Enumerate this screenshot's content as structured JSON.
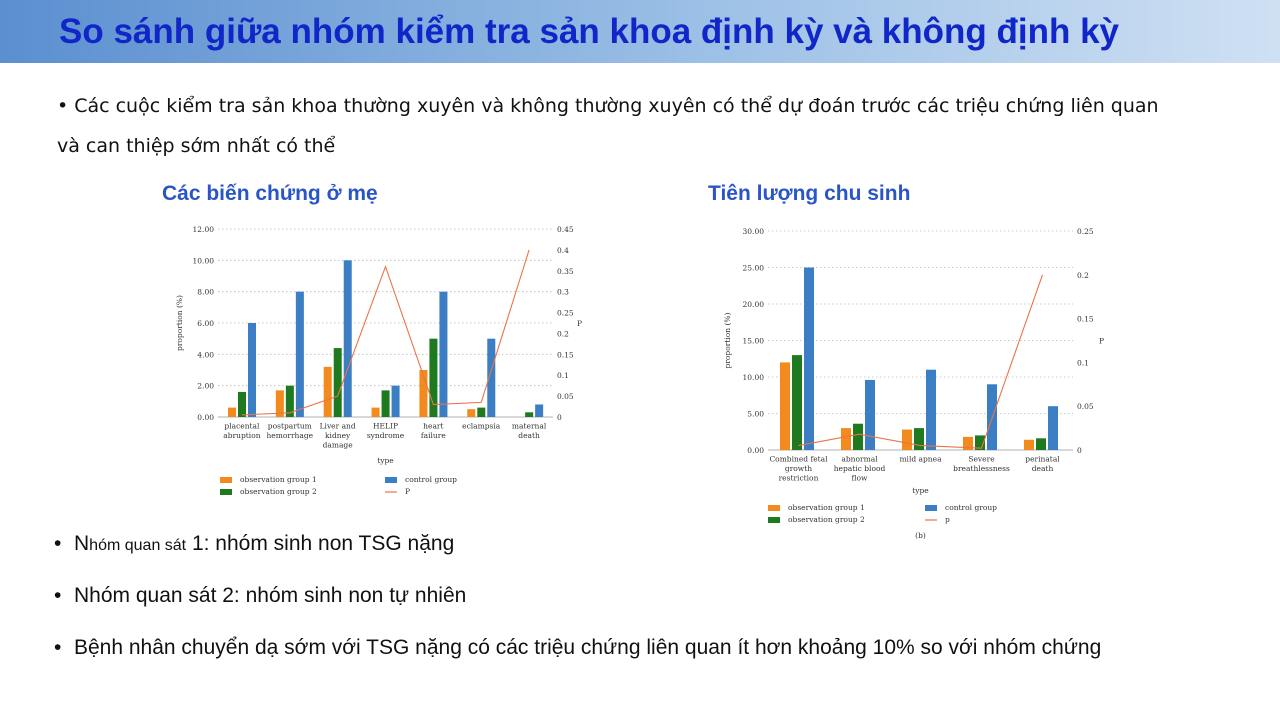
{
  "slide": {
    "title": "So sánh giữa nhóm kiểm tra sản khoa định kỳ và không định kỳ",
    "intro": "Các cuộc kiểm tra sản khoa thường xuyên và không thường xuyên có thể dự đoán trước các triệu chứng liên quan và can thiệp sớm nhất có thể",
    "bullet_symbol": "•",
    "bullets": {
      "b1_prefix": "N",
      "b1_small": "hóm quan sát",
      "b1_rest": " 1: nhóm sinh non TSG nặng",
      "b2": "Nhóm quan sát 2: nhóm sinh non tự nhiên",
      "b3": "Bệnh nhân chuyển dạ sớm với TSG nặng có các triệu chứng liên quan ít hơn khoảng 10% so với nhóm chứng"
    }
  },
  "colors": {
    "obs1": "#f28a1e",
    "obs2": "#1f7a1f",
    "control": "#3b7ec4",
    "p": "#e8744a"
  },
  "chart_data": [
    {
      "heading": "Các biến chứng ở mẹ",
      "type": "bar",
      "xlabel": "type",
      "ylabel": "proportion (%)",
      "y2label": "P",
      "ylim": [
        0,
        12
      ],
      "y2lim": [
        0,
        0.45
      ],
      "yticks": [
        "0.00",
        "2.00",
        "4.00",
        "6.00",
        "8.00",
        "10.00",
        "12.00"
      ],
      "y2ticks": [
        "0",
        "0.05",
        "0.1",
        "0.15",
        "0.2",
        "0.25",
        "0.3",
        "0.35",
        "0.4",
        "0.45"
      ],
      "categories": [
        [
          "placental",
          "abruption"
        ],
        [
          "postpartum",
          "hemorrhage"
        ],
        [
          "Liver and",
          "kidney",
          "damage"
        ],
        [
          "HELIP",
          "syndrome"
        ],
        [
          "heart",
          "failure"
        ],
        [
          "eclampsia"
        ],
        [
          "maternal",
          "death"
        ]
      ],
      "series": [
        {
          "name": "observation group 1",
          "values": [
            0.6,
            1.7,
            3.2,
            0.6,
            3.0,
            0.5,
            0.0
          ]
        },
        {
          "name": "observation group 2",
          "values": [
            1.6,
            2.0,
            4.4,
            1.7,
            5.0,
            0.6,
            0.3
          ]
        },
        {
          "name": "control group",
          "values": [
            6.0,
            8.0,
            10.0,
            2.0,
            8.0,
            5.0,
            0.8
          ]
        }
      ],
      "p_series": {
        "name": "P",
        "values": [
          0.005,
          0.01,
          0.05,
          0.36,
          0.03,
          0.035,
          0.4
        ]
      },
      "legend_order": [
        "observation group 1",
        "control group",
        "observation group 2",
        "P"
      ],
      "legend_position": "bottom"
    },
    {
      "heading": "Tiên lượng chu sinh",
      "type": "bar",
      "xlabel": "type",
      "ylabel": "proportion (%)",
      "y2label": "P",
      "caption": "(b)",
      "ylim": [
        0,
        30
      ],
      "y2lim": [
        0,
        0.25
      ],
      "yticks": [
        "0.00",
        "5.00",
        "10.00",
        "15.00",
        "20.00",
        "25.00",
        "30.00"
      ],
      "y2ticks": [
        "0",
        "0.05",
        "0.1",
        "0.15",
        "0.2",
        "0.25"
      ],
      "categories": [
        [
          "Combined fetal",
          "growth",
          "restriction"
        ],
        [
          "abnormal",
          "hepatic blood",
          "flow"
        ],
        [
          "mild apnea"
        ],
        [
          "Severe",
          "breathlessness"
        ],
        [
          "perinatal",
          "death"
        ]
      ],
      "series": [
        {
          "name": "observation group 1",
          "values": [
            12.0,
            3.0,
            2.8,
            1.8,
            1.4
          ]
        },
        {
          "name": "observation group 2",
          "values": [
            13.0,
            3.6,
            3.0,
            2.0,
            1.6
          ]
        },
        {
          "name": "control group",
          "values": [
            25.0,
            9.6,
            11.0,
            9.0,
            6.0
          ]
        }
      ],
      "p_series": {
        "name": "P",
        "values": [
          0.005,
          0.018,
          0.005,
          0.002,
          0.2
        ]
      },
      "legend_order": [
        "observation group 1",
        "control group",
        "observation group 2",
        "p"
      ],
      "legend_position": "bottom"
    }
  ]
}
